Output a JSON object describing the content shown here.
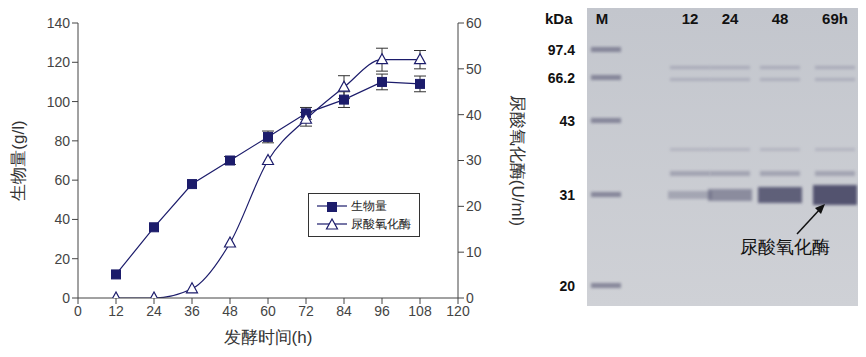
{
  "chart_data": {
    "type": "line",
    "x_label": "发酵时间(h)",
    "y_label": "生物量(g/l)",
    "y2_label": "尿酸氧化酶(U/ml)",
    "x": [
      12,
      24,
      36,
      48,
      60,
      72,
      84,
      96,
      108
    ],
    "xlim": [
      0,
      120
    ],
    "xticks": [
      0,
      12,
      24,
      36,
      48,
      60,
      72,
      84,
      96,
      108,
      120
    ],
    "ylim": [
      0,
      140
    ],
    "yticks": [
      0,
      20,
      40,
      60,
      80,
      100,
      120,
      140
    ],
    "y2lim": [
      0,
      60
    ],
    "y2ticks": [
      0,
      10,
      20,
      30,
      40,
      50,
      60
    ],
    "legend": "right",
    "series": [
      {
        "name": "生物量",
        "color": "#1c1c6b",
        "marker": "square",
        "line_style": "solid",
        "values": [
          12,
          36,
          58,
          70,
          82,
          94,
          101,
          110,
          109
        ],
        "errors": [
          null,
          null,
          null,
          2,
          3,
          3,
          4,
          4,
          4
        ]
      },
      {
        "name": "尿酸氧化酶",
        "color": "#1c1c6b",
        "marker": "triangle",
        "line_style": "smooth",
        "axis": "y2",
        "values": [
          0,
          0,
          2,
          12,
          30,
          39,
          46,
          52,
          52
        ],
        "errors": [
          null,
          null,
          null,
          null,
          null,
          1.5,
          2.5,
          2.5,
          2
        ]
      }
    ]
  },
  "gel": {
    "unit": "kDa",
    "marker_lane": "M",
    "markers": [
      97.4,
      66.2,
      43,
      31,
      20
    ],
    "lanes": [
      "12",
      "24",
      "48",
      "69h"
    ],
    "annotation": "尿酸氧化酶"
  }
}
